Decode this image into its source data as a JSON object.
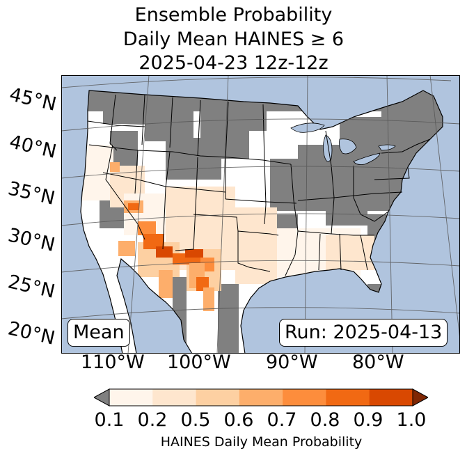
{
  "title": {
    "line1": "Ensemble Probability",
    "line2": "Daily Mean HAINES ≥ 6",
    "line3": "2025-04-23 12z-12z"
  },
  "map": {
    "latitude_labels": [
      "45°N",
      "40°N",
      "35°N",
      "30°N",
      "25°N",
      "20°N"
    ],
    "longitude_labels": [
      "110°W",
      "100°W",
      "90°W",
      "80°W"
    ],
    "mean_label": "Mean",
    "run_label": "Run: 2025-04-13",
    "colors": {
      "ocean": "#b0c4de",
      "no_data_land": "#808080",
      "below_threshold": "#ffffff",
      "grid": "#555555"
    }
  },
  "colorbar": {
    "label": "HAINES Daily Mean Probability",
    "ticks": [
      "0.1",
      "0.2",
      "0.5",
      "0.6",
      "0.7",
      "0.8",
      "0.9",
      "1.0"
    ],
    "under_color": "#808080",
    "over_color": "#7f2704",
    "bins": [
      {
        "from": 0.1,
        "to": 0.2,
        "color": "#fff5eb"
      },
      {
        "from": 0.2,
        "to": 0.5,
        "color": "#fee6ce"
      },
      {
        "from": 0.5,
        "to": 0.6,
        "color": "#fdd0a2"
      },
      {
        "from": 0.6,
        "to": 0.7,
        "color": "#fdae6b"
      },
      {
        "from": 0.7,
        "to": 0.8,
        "color": "#fd8d3c"
      },
      {
        "from": 0.8,
        "to": 0.9,
        "color": "#f16913"
      },
      {
        "from": 0.9,
        "to": 1.0,
        "color": "#d94801"
      }
    ]
  }
}
